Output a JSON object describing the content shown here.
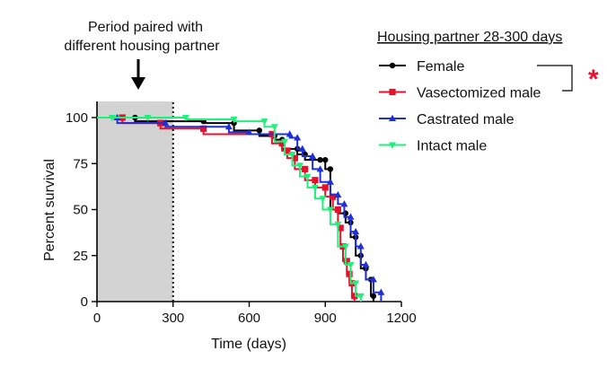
{
  "chart_data": {
    "type": "line",
    "subtype": "kaplan-meier survival",
    "xlabel": "Time (days)",
    "ylabel": "Percent survival",
    "xlim": [
      0,
      1200
    ],
    "ylim": [
      0,
      100
    ],
    "xticks": [
      0,
      300,
      600,
      900,
      1200
    ],
    "yticks": [
      0,
      25,
      50,
      75,
      100
    ],
    "shaded_region": {
      "x_start": 0,
      "x_end": 300,
      "color": "#d3d3d3"
    },
    "divider_x": 300,
    "annotation": {
      "line1": "Period paired with",
      "line2": "different housing partner"
    },
    "legend_title": "Housing partner 28-300 days",
    "significance": {
      "label": "*",
      "between": [
        "Female",
        "Vasectomized male"
      ],
      "color": "#e8112d"
    },
    "series": [
      {
        "name": "Female",
        "color": "#000000",
        "marker": "circle",
        "points": [
          [
            0,
            100
          ],
          [
            150,
            98
          ],
          [
            420,
            97
          ],
          [
            540,
            93
          ],
          [
            640,
            90
          ],
          [
            700,
            88
          ],
          [
            730,
            83
          ],
          [
            790,
            80
          ],
          [
            820,
            77
          ],
          [
            880,
            77
          ],
          [
            900,
            72
          ],
          [
            920,
            50
          ],
          [
            950,
            48
          ],
          [
            980,
            43
          ],
          [
            1000,
            35
          ],
          [
            1020,
            25
          ],
          [
            1040,
            18
          ],
          [
            1060,
            12
          ],
          [
            1080,
            3
          ],
          [
            1090,
            0
          ]
        ]
      },
      {
        "name": "Vasectomized male",
        "color": "#e8112d",
        "marker": "square",
        "points": [
          [
            0,
            100
          ],
          [
            100,
            97
          ],
          [
            250,
            94
          ],
          [
            420,
            91
          ],
          [
            690,
            86
          ],
          [
            730,
            82
          ],
          [
            750,
            78
          ],
          [
            780,
            72
          ],
          [
            820,
            66
          ],
          [
            860,
            62
          ],
          [
            900,
            57
          ],
          [
            930,
            50
          ],
          [
            950,
            40
          ],
          [
            960,
            30
          ],
          [
            970,
            22
          ],
          [
            985,
            15
          ],
          [
            995,
            10
          ],
          [
            1005,
            3
          ],
          [
            1015,
            0
          ]
        ]
      },
      {
        "name": "Castrated male",
        "color": "#1f2fd6",
        "marker": "triangle-up",
        "points": [
          [
            0,
            100
          ],
          [
            80,
            97
          ],
          [
            270,
            95
          ],
          [
            520,
            92
          ],
          [
            600,
            91
          ],
          [
            760,
            89
          ],
          [
            790,
            83
          ],
          [
            810,
            79
          ],
          [
            850,
            72
          ],
          [
            880,
            65
          ],
          [
            920,
            58
          ],
          [
            950,
            53
          ],
          [
            975,
            46
          ],
          [
            1000,
            38
          ],
          [
            1020,
            30
          ],
          [
            1040,
            20
          ],
          [
            1060,
            12
          ],
          [
            1090,
            5
          ],
          [
            1120,
            0
          ]
        ]
      },
      {
        "name": "Intact male",
        "color": "#1ef07a",
        "marker": "triangle-down",
        "points": [
          [
            0,
            100
          ],
          [
            60,
            100
          ],
          [
            200,
            100
          ],
          [
            350,
            99
          ],
          [
            540,
            98
          ],
          [
            660,
            95
          ],
          [
            700,
            87
          ],
          [
            740,
            80
          ],
          [
            770,
            74
          ],
          [
            800,
            68
          ],
          [
            830,
            62
          ],
          [
            860,
            56
          ],
          [
            890,
            50
          ],
          [
            920,
            42
          ],
          [
            950,
            30
          ],
          [
            980,
            20
          ],
          [
            1000,
            10
          ],
          [
            1020,
            3
          ],
          [
            1040,
            0
          ]
        ]
      }
    ]
  }
}
